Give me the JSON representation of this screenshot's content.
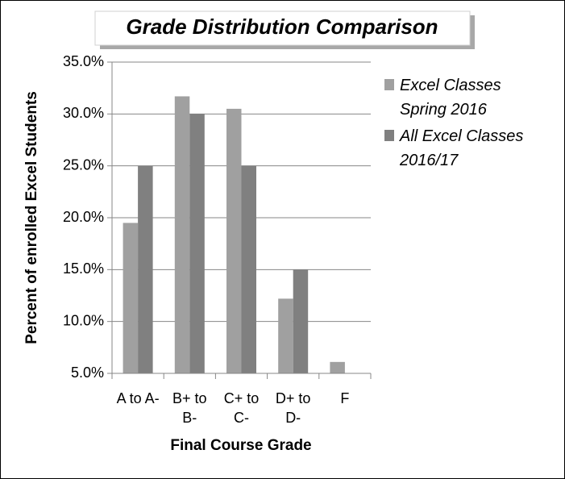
{
  "chart_data": {
    "type": "bar",
    "title": "Grade Distribution Comparison",
    "x_label": "Final Course Grade",
    "y_label": "Percent of enrolled Excel Students",
    "categories": [
      "A to A-",
      "B+ to B-",
      "C+ to C-",
      "D+ to D-",
      "F"
    ],
    "series": [
      {
        "name": "Excel Classes Spring 2016",
        "color": "#a0a0a0",
        "values": [
          19.5,
          31.7,
          30.5,
          12.2,
          6.1
        ]
      },
      {
        "name": "All Excel Classes 2016/17",
        "color": "#808080",
        "values": [
          25,
          30,
          25,
          15,
          null
        ]
      }
    ],
    "ylim": [
      5,
      35
    ],
    "yticks": [
      {
        "value": 5,
        "label": "5.0%"
      },
      {
        "value": 10,
        "label": "10.0%"
      },
      {
        "value": 15,
        "label": "15.0%"
      },
      {
        "value": 20,
        "label": "20.0%"
      },
      {
        "value": 25,
        "label": "25.0%"
      },
      {
        "value": 30,
        "label": "30.0%"
      },
      {
        "value": 35,
        "label": "35.0%"
      }
    ],
    "grid": true,
    "legend": "right"
  }
}
